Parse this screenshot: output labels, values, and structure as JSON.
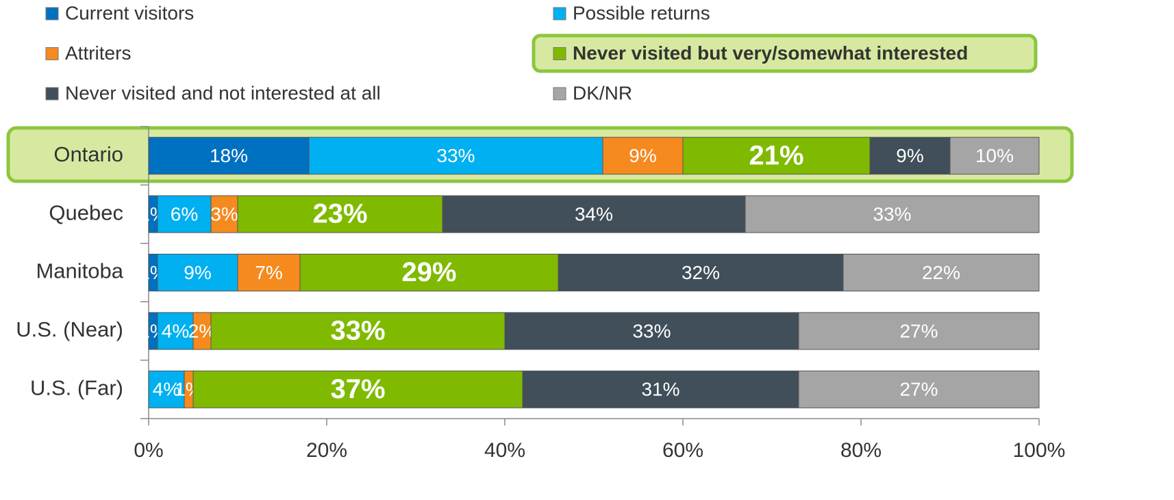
{
  "chart_data": {
    "type": "stacked-bar-horizontal",
    "categories": [
      "Ontario",
      "Quebec",
      "Manitoba",
      "U.S. (Near)",
      "U.S. (Far)"
    ],
    "series": [
      {
        "name": "Current visitors",
        "color": "#0070c0",
        "values": [
          18,
          1,
          1,
          1,
          null
        ],
        "value_labels": [
          "18%",
          "1%",
          "1%",
          "1%",
          null
        ]
      },
      {
        "name": "Possible returns",
        "color": "#00b0f0",
        "values": [
          33,
          6,
          9,
          4,
          4
        ],
        "value_labels": [
          "33%",
          "6%",
          "9%",
          "4%",
          "4%"
        ]
      },
      {
        "name": "Attriters",
        "color": "#f58a1f",
        "values": [
          9,
          3,
          7,
          2,
          1
        ],
        "value_labels": [
          "9%",
          "3%",
          "7%",
          "2%",
          "1%"
        ]
      },
      {
        "name": "Never visited but very/somewhat interested",
        "color": "#7fba00",
        "values": [
          21,
          23,
          29,
          33,
          37
        ],
        "value_labels": [
          "21%",
          "23%",
          "29%",
          "33%",
          "37%"
        ]
      },
      {
        "name": "Never visited and not interested at all",
        "color": "#404f5a",
        "values": [
          9,
          34,
          32,
          33,
          31
        ],
        "value_labels": [
          "9%",
          "34%",
          "32%",
          "33%",
          "31%"
        ]
      },
      {
        "name": "DK/NR",
        "color": "#a5a5a5",
        "values": [
          10,
          33,
          22,
          27,
          27
        ],
        "value_labels": [
          "10%",
          "33%",
          "22%",
          "27%",
          "27%"
        ]
      }
    ],
    "xlim": [
      0,
      100
    ],
    "xticks": [
      {
        "value": 0,
        "label": "0%"
      },
      {
        "value": 20,
        "label": "20%"
      },
      {
        "value": 40,
        "label": "40%"
      },
      {
        "value": 60,
        "label": "60%"
      },
      {
        "value": 80,
        "label": "80%"
      },
      {
        "value": 100,
        "label": "100%"
      }
    ]
  }
}
